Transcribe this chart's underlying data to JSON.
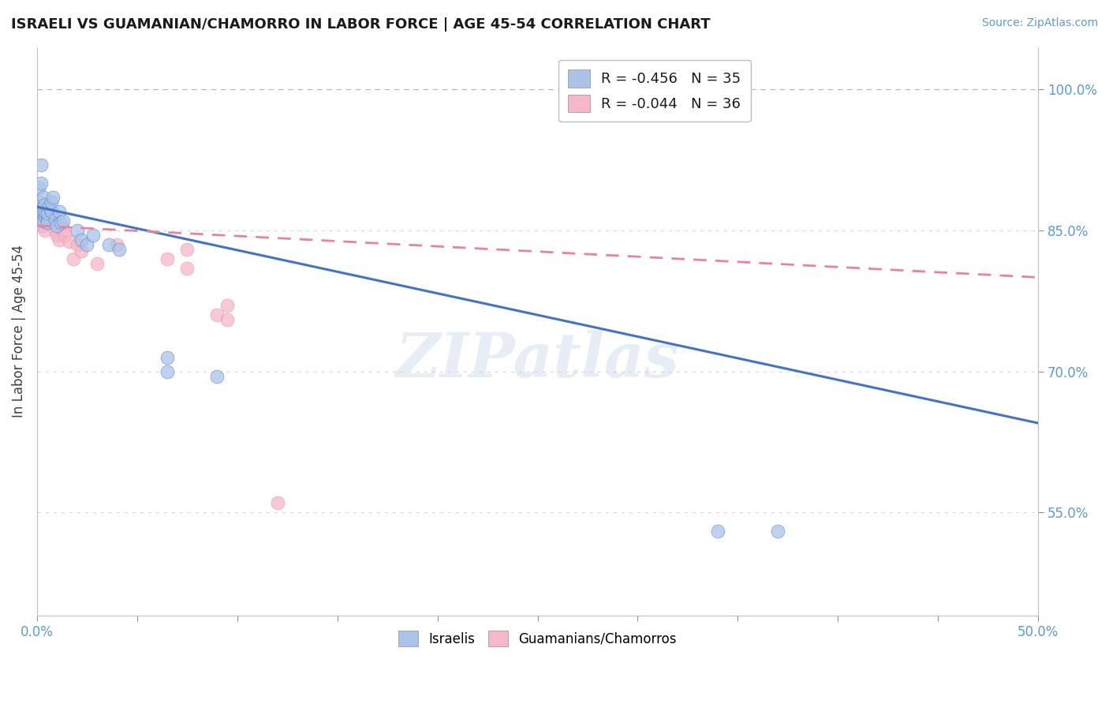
{
  "title": "ISRAELI VS GUAMANIAN/CHAMORRO IN LABOR FORCE | AGE 45-54 CORRELATION CHART",
  "source": "Source: ZipAtlas.com",
  "ylabel": "In Labor Force | Age 45-54",
  "xmin": 0.0,
  "xmax": 0.5,
  "ymin": 0.44,
  "ymax": 1.045,
  "ytick_labels": [
    "55.0%",
    "70.0%",
    "85.0%",
    "100.0%"
  ],
  "ytick_values": [
    0.55,
    0.7,
    0.85,
    1.0
  ],
  "legend_items": [
    {
      "color": "#aac4e8",
      "label": "R = -0.456   N = 35"
    },
    {
      "color": "#f4b8c8",
      "label": "R = -0.044   N = 36"
    }
  ],
  "legend_bottom": [
    {
      "color": "#aac4e8",
      "label": "Israelis"
    },
    {
      "color": "#f4b8c8",
      "label": "Guamanians/Chamorros"
    }
  ],
  "israeli_x": [
    0.001,
    0.001,
    0.002,
    0.002,
    0.002,
    0.003,
    0.003,
    0.003,
    0.003,
    0.004,
    0.004,
    0.004,
    0.005,
    0.005,
    0.005,
    0.006,
    0.007,
    0.007,
    0.008,
    0.009,
    0.01,
    0.011,
    0.012,
    0.013,
    0.02,
    0.022,
    0.025,
    0.028,
    0.036,
    0.041,
    0.065,
    0.065,
    0.09,
    0.34,
    0.37
  ],
  "israeli_y": [
    0.88,
    0.895,
    0.87,
    0.9,
    0.92,
    0.86,
    0.875,
    0.885,
    0.87,
    0.865,
    0.87,
    0.878,
    0.862,
    0.858,
    0.868,
    0.875,
    0.87,
    0.88,
    0.885,
    0.862,
    0.855,
    0.87,
    0.858,
    0.86,
    0.85,
    0.84,
    0.835,
    0.845,
    0.835,
    0.83,
    0.7,
    0.715,
    0.695,
    0.53,
    0.53
  ],
  "guamanian_x": [
    0.001,
    0.001,
    0.002,
    0.002,
    0.002,
    0.003,
    0.003,
    0.003,
    0.003,
    0.004,
    0.004,
    0.005,
    0.005,
    0.006,
    0.007,
    0.007,
    0.008,
    0.008,
    0.009,
    0.01,
    0.011,
    0.013,
    0.014,
    0.016,
    0.018,
    0.02,
    0.022,
    0.03,
    0.04,
    0.065,
    0.075,
    0.075,
    0.09,
    0.095,
    0.095,
    0.12
  ],
  "guamanian_y": [
    0.872,
    0.865,
    0.86,
    0.855,
    0.87,
    0.862,
    0.87,
    0.865,
    0.855,
    0.86,
    0.85,
    0.875,
    0.865,
    0.858,
    0.862,
    0.87,
    0.865,
    0.858,
    0.85,
    0.845,
    0.84,
    0.852,
    0.845,
    0.838,
    0.82,
    0.835,
    0.828,
    0.815,
    0.835,
    0.82,
    0.81,
    0.83,
    0.76,
    0.77,
    0.755,
    0.56
  ],
  "israeli_dot_color": "#aac4e8",
  "guamanian_dot_color": "#f4b8c8",
  "israeli_line_color": "#4472c4",
  "guamanian_line_color": "#e8849a",
  "background_color": "#ffffff",
  "watermark": "ZIPatlas",
  "israeli_line_x": [
    0.0,
    0.5
  ],
  "israeli_line_y": [
    0.875,
    0.645
  ],
  "guamanian_line_x": [
    0.0,
    0.5
  ],
  "guamanian_line_y": [
    0.855,
    0.8
  ],
  "dashed_line_color": "#b0b0c8",
  "grid_line_color": "#d8d8e8",
  "grid_line_y": [
    0.55,
    0.7,
    0.85
  ]
}
